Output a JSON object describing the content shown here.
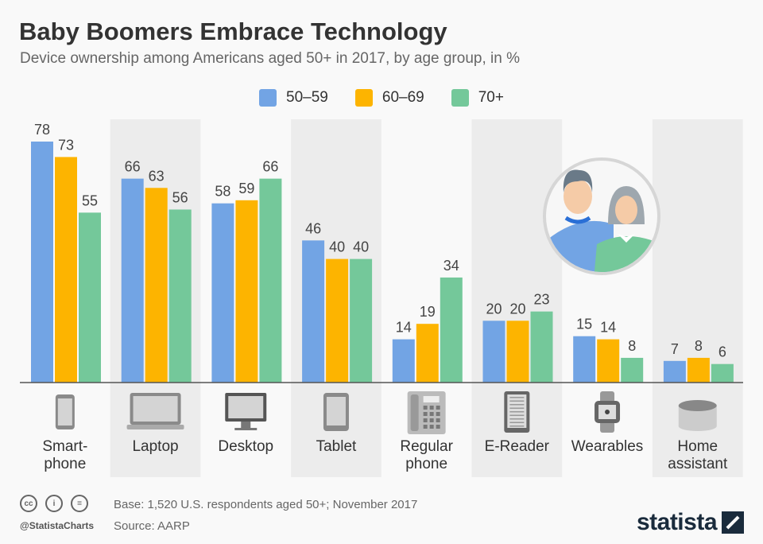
{
  "title": "Baby Boomers Embrace Technology",
  "subtitle": "Device ownership among Americans aged 50+ in 2017, by age group, in %",
  "colors": {
    "50-59": "#72a4e4",
    "60-69": "#fdb400",
    "70+": "#74c89a",
    "band": "#ececec"
  },
  "chart_data": {
    "type": "bar",
    "categories": [
      "Smart-\nphone",
      "Laptop",
      "Desktop",
      "Tablet",
      "Regular\nphone",
      "E-Reader",
      "Wearables",
      "Home\nassistant"
    ],
    "category_icons": [
      "smartphone-icon",
      "laptop-icon",
      "desktop-icon",
      "tablet-icon",
      "landline-phone-icon",
      "ereader-icon",
      "smartwatch-icon",
      "smart-speaker-icon"
    ],
    "series": [
      {
        "name": "50–59",
        "values": [
          78,
          66,
          58,
          46,
          14,
          20,
          15,
          7
        ]
      },
      {
        "name": "60–69",
        "values": [
          73,
          63,
          59,
          40,
          19,
          20,
          14,
          8
        ]
      },
      {
        "name": "70+",
        "values": [
          55,
          56,
          66,
          40,
          34,
          23,
          8,
          6
        ]
      }
    ],
    "ylim": [
      0,
      85
    ],
    "legend": "top-center",
    "grid": false
  },
  "footer": {
    "base": "Base: 1,520 U.S. respondents aged 50+; November 2017",
    "source": "Source: AARP",
    "handle": "@StatistaCharts",
    "logo": "statista",
    "cc_icons": [
      "cc",
      "i",
      "="
    ]
  }
}
